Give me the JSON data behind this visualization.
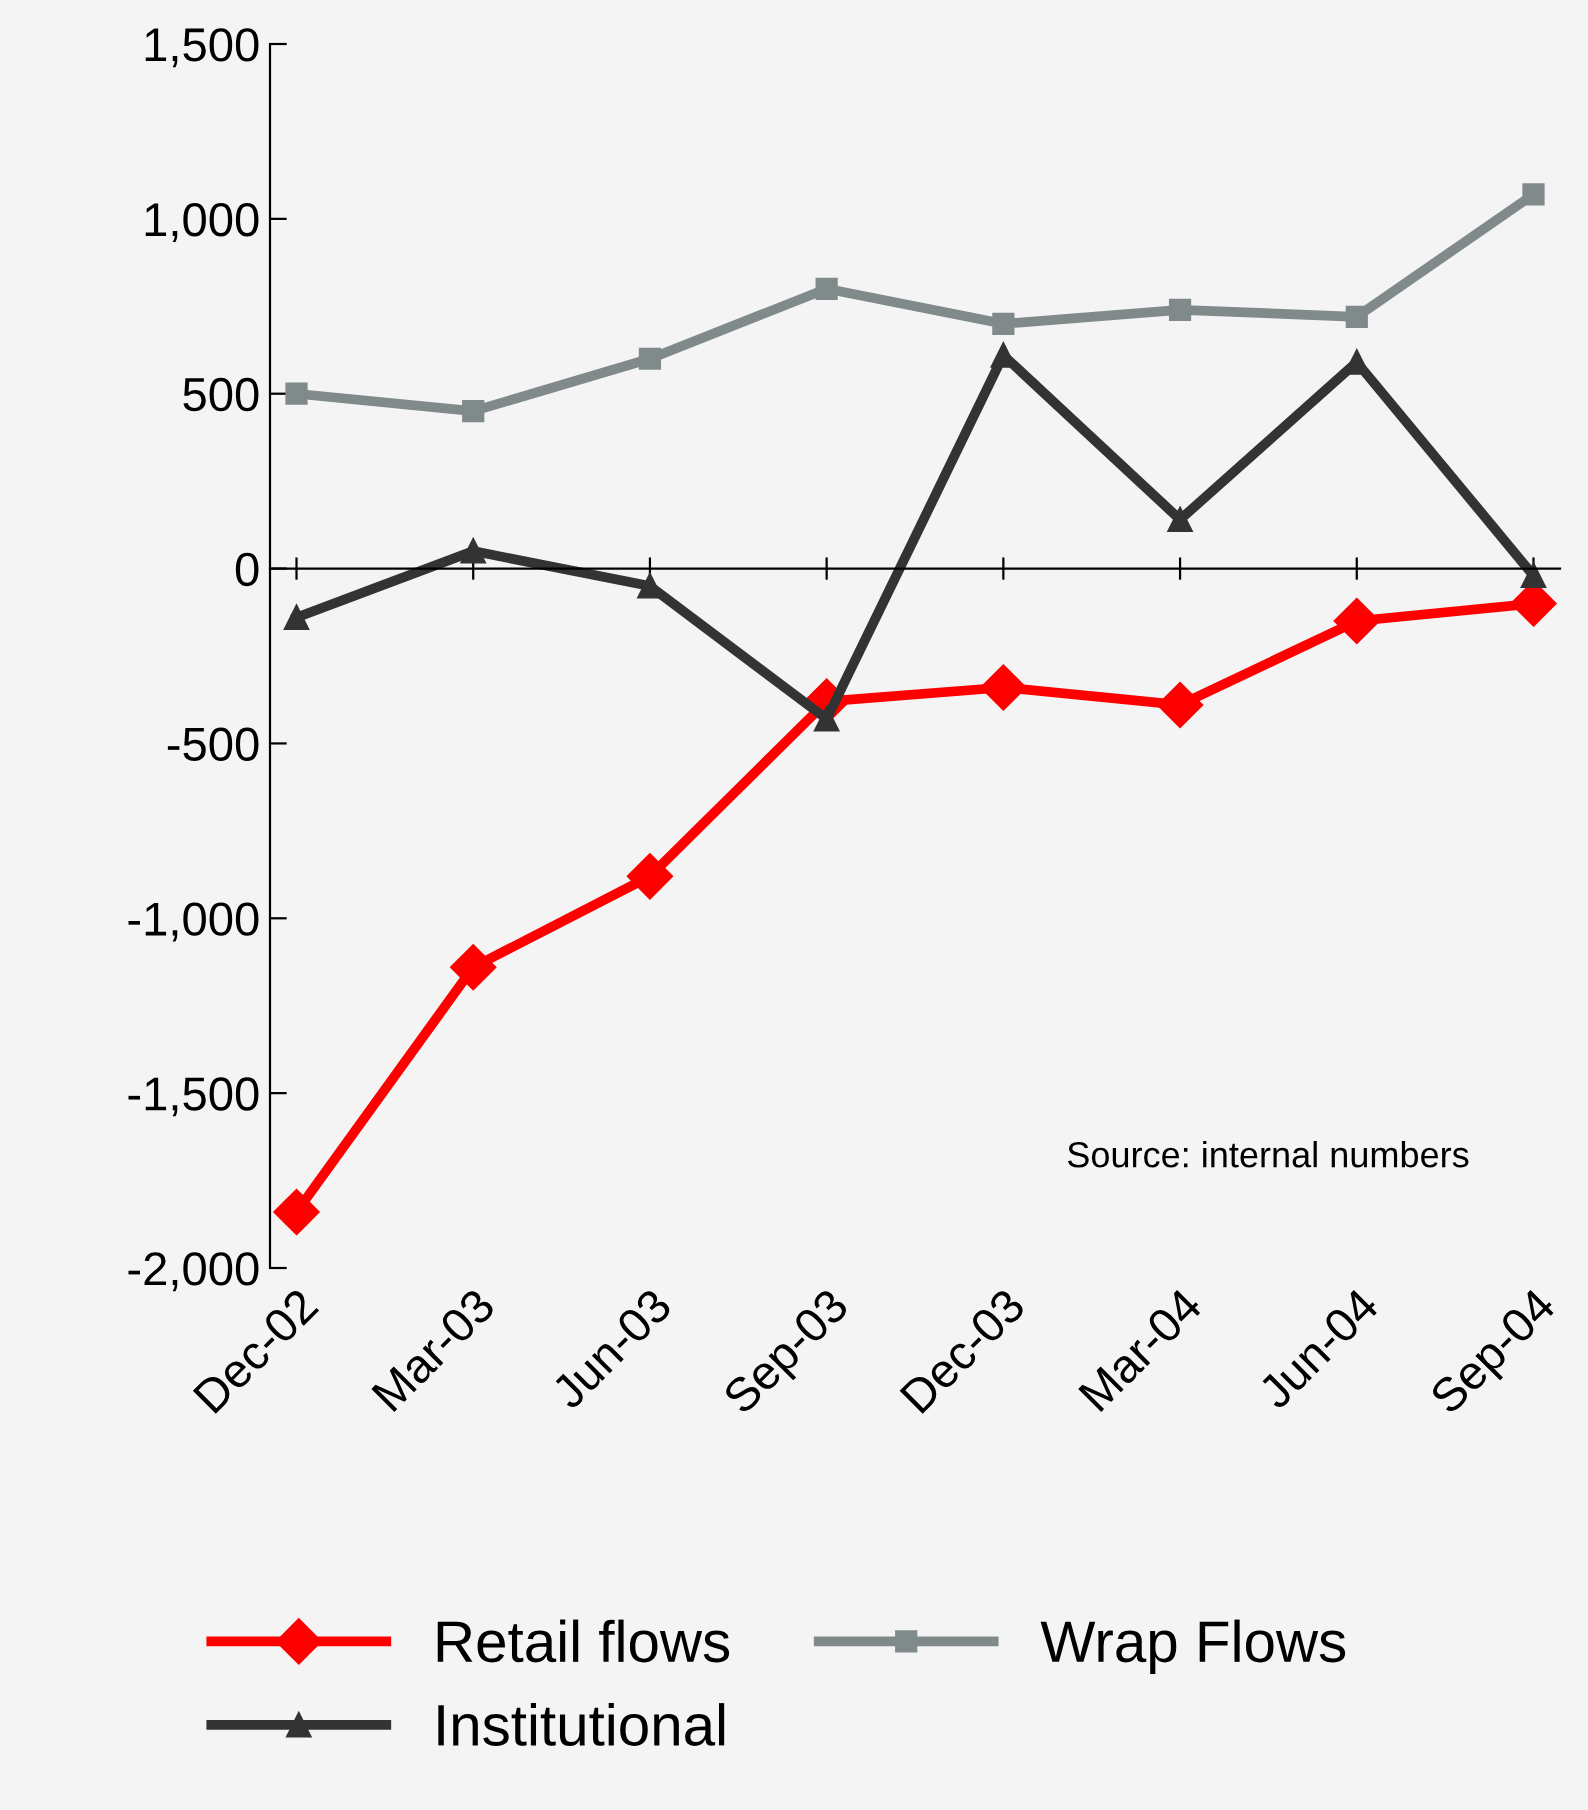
{
  "chart_data": {
    "type": "line",
    "categories": [
      "Dec-02",
      "Mar-03",
      "Jun-03",
      "Sep-03",
      "Dec-03",
      "Mar-04",
      "Jun-04",
      "Sep-04"
    ],
    "series": [
      {
        "name": "Retail flows",
        "color": "#ff0000",
        "marker": "diamond",
        "values": [
          -1840,
          -1140,
          -880,
          -380,
          -340,
          -390,
          -150,
          -100
        ]
      },
      {
        "name": "Wrap Flows",
        "color": "#808a8a",
        "marker": "square",
        "values": [
          500,
          450,
          600,
          800,
          700,
          740,
          720,
          1070
        ]
      },
      {
        "name": "Institutional",
        "color": "#333333",
        "marker": "triangle",
        "values": [
          -140,
          50,
          -50,
          -430,
          610,
          140,
          590,
          -20
        ]
      }
    ],
    "ylim": [
      -2000,
      1500
    ],
    "yticks": [
      {
        "value": -2000,
        "label": "-2,000"
      },
      {
        "value": -1500,
        "label": "-1,500"
      },
      {
        "value": -1000,
        "label": "-1,000"
      },
      {
        "value": -500,
        "label": "-500"
      },
      0,
      500,
      {
        "value": 1000,
        "label": "1,000"
      },
      {
        "value": 1500,
        "label": "1,500"
      }
    ],
    "annotations": [
      {
        "text": "Source: internal numbers"
      }
    ],
    "legend": "bottom",
    "line_style": "solid"
  }
}
